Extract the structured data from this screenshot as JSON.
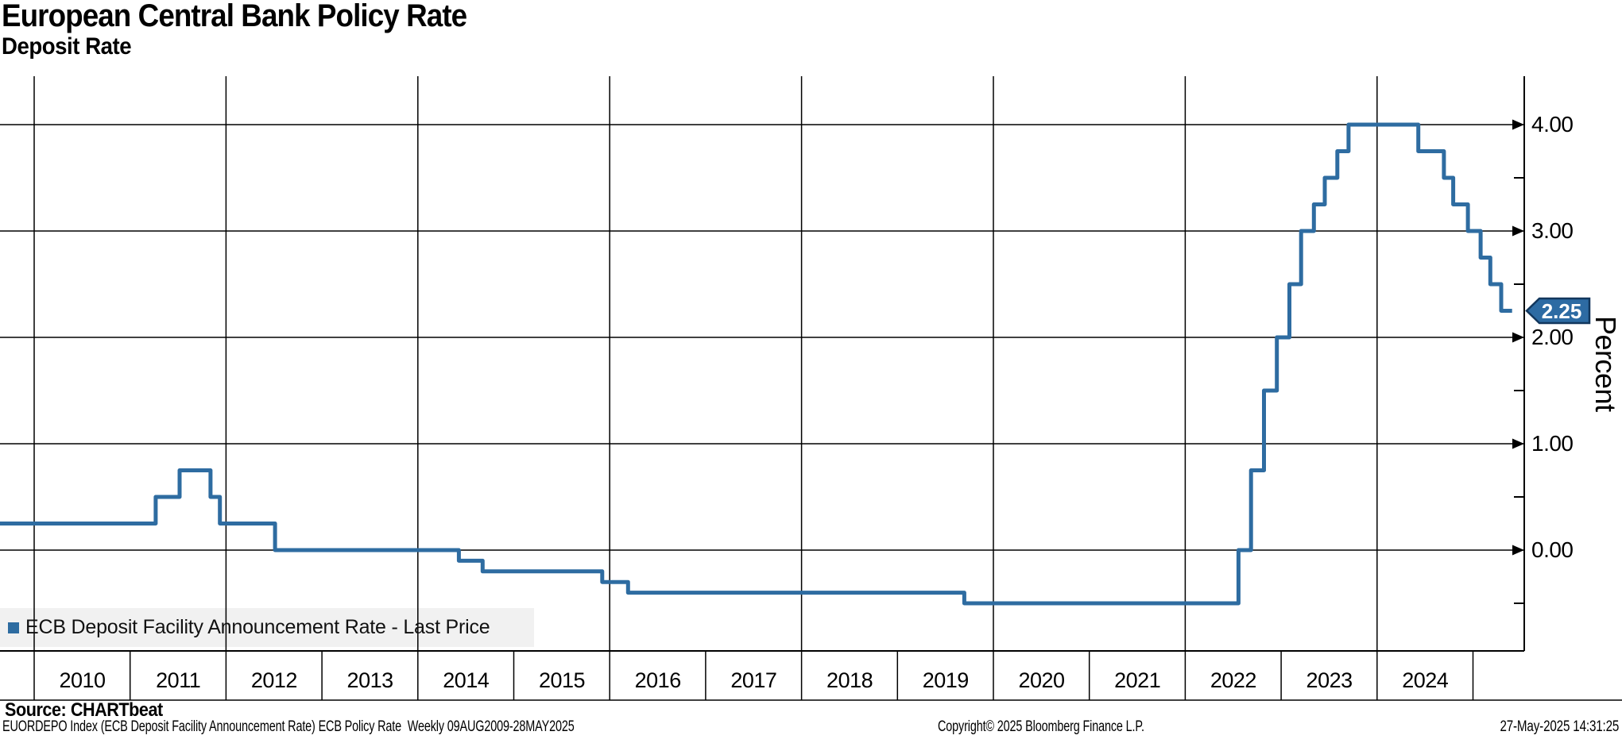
{
  "header": {
    "title": "European Central Bank Policy Rate",
    "subtitle": "Deposit Rate"
  },
  "legend": {
    "marker_color": "#2e6ca1",
    "label": "ECB Deposit Facility Announcement Rate - Last Price"
  },
  "axis": {
    "y_title": "Percent",
    "last_price": "2.25"
  },
  "footer": {
    "source": "Source: CHARTbeat",
    "description": "EUORDEPO Index (ECB Deposit Facility Announcement Rate) ECB Policy Rate  Weekly 09AUG2009-28MAY2025",
    "copyright": "Copyright© 2025 Bloomberg Finance L.P.",
    "timestamp": "27-May-2025 14:31:25"
  },
  "chart_data": {
    "type": "line",
    "step": "after",
    "title": "European Central Bank Policy Rate",
    "subtitle": "Deposit Rate",
    "xlabel": "",
    "ylabel": "Percent",
    "ylim": [
      -0.95,
      4.45
    ],
    "x_range": [
      "2009-08-09",
      "2025-05-28"
    ],
    "grid": {
      "horizontal_interval": 1.0,
      "vertical_interval_years": 2
    },
    "legend_position": "bottom-left",
    "line_color": "#2e6ca1",
    "badge_fill": "#2d6ba3",
    "badge_border": "#12375d",
    "last_price_label": "2.25",
    "y_ticks": [
      {
        "value": 4,
        "label": "4.00"
      },
      {
        "value": 3,
        "label": "3.00"
      },
      {
        "value": 2,
        "label": "2.00"
      },
      {
        "value": 1,
        "label": "1.00"
      },
      {
        "value": 0,
        "label": "0.00"
      }
    ],
    "y_minor_ticks": [
      3.5,
      2.5,
      1.5,
      0.5,
      -0.5
    ],
    "x_ticks": [
      {
        "year": 2010,
        "label": "2010"
      },
      {
        "year": 2011,
        "label": "2011"
      },
      {
        "year": 2012,
        "label": "2012"
      },
      {
        "year": 2013,
        "label": "2013"
      },
      {
        "year": 2014,
        "label": "2014"
      },
      {
        "year": 2015,
        "label": "2015"
      },
      {
        "year": 2016,
        "label": "2016"
      },
      {
        "year": 2017,
        "label": "2017"
      },
      {
        "year": 2018,
        "label": "2018"
      },
      {
        "year": 2019,
        "label": "2019"
      },
      {
        "year": 2020,
        "label": "2020"
      },
      {
        "year": 2021,
        "label": "2021"
      },
      {
        "year": 2022,
        "label": "2022"
      },
      {
        "year": 2023,
        "label": "2023"
      },
      {
        "year": 2024,
        "label": "2024"
      }
    ],
    "x_gridline_years": [
      2010,
      2012,
      2014,
      2016,
      2018,
      2020,
      2022,
      2024
    ],
    "x_boundary_years": [
      2010,
      2011,
      2012,
      2013,
      2014,
      2015,
      2016,
      2017,
      2018,
      2019,
      2020,
      2021,
      2022,
      2023,
      2024,
      2025
    ],
    "series": [
      {
        "name": "ECB Deposit Facility Announcement Rate - Last Price",
        "color": "#2e6ca1",
        "end_date": "2025-05-28",
        "last_value": 2.25,
        "points": [
          [
            "2009-08-09",
            0.25
          ],
          [
            "2011-04-07",
            0.5
          ],
          [
            "2011-07-07",
            0.75
          ],
          [
            "2011-11-03",
            0.5
          ],
          [
            "2011-12-08",
            0.25
          ],
          [
            "2012-07-05",
            0.0
          ],
          [
            "2014-06-05",
            -0.1
          ],
          [
            "2014-09-04",
            -0.2
          ],
          [
            "2015-12-03",
            -0.3
          ],
          [
            "2016-03-10",
            -0.4
          ],
          [
            "2019-09-12",
            -0.5
          ],
          [
            "2022-07-21",
            0.0
          ],
          [
            "2022-09-08",
            0.75
          ],
          [
            "2022-10-27",
            1.5
          ],
          [
            "2022-12-15",
            2.0
          ],
          [
            "2023-02-02",
            2.5
          ],
          [
            "2023-03-16",
            3.0
          ],
          [
            "2023-05-04",
            3.25
          ],
          [
            "2023-06-15",
            3.5
          ],
          [
            "2023-08-02",
            3.75
          ],
          [
            "2023-09-14",
            4.0
          ],
          [
            "2024-06-06",
            3.75
          ],
          [
            "2024-09-12",
            3.5
          ],
          [
            "2024-10-17",
            3.25
          ],
          [
            "2024-12-12",
            3.0
          ],
          [
            "2025-01-30",
            2.75
          ],
          [
            "2025-03-06",
            2.5
          ],
          [
            "2025-04-17",
            2.25
          ]
        ]
      }
    ]
  }
}
